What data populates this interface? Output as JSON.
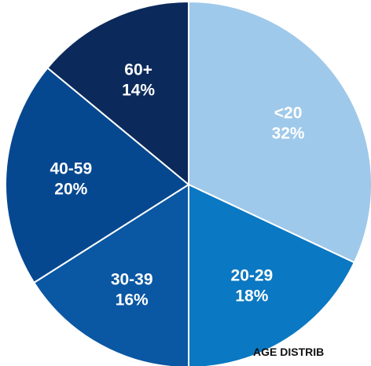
{
  "chart_data": {
    "type": "pie",
    "title": "AGE DISTRIB",
    "start_angle_deg": 0,
    "direction": "clockwise",
    "slices": [
      {
        "category": "<20",
        "value": 32,
        "label": "32%",
        "color": "#9fc9ea"
      },
      {
        "category": "20-29",
        "value": 18,
        "label": "18%",
        "color": "#0a78c2"
      },
      {
        "category": "30-39",
        "value": 16,
        "label": "16%",
        "color": "#0a57a3"
      },
      {
        "category": "40-59",
        "value": 20,
        "label": "20%",
        "color": "#064890"
      },
      {
        "category": "60+",
        "value": 14,
        "label": "14%",
        "color": "#0b2a5b"
      }
    ]
  }
}
